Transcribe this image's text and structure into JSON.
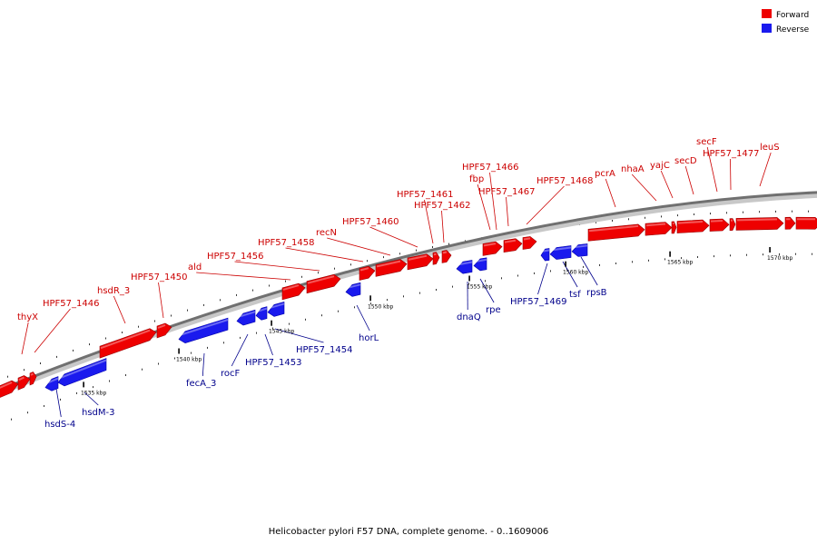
{
  "legend": {
    "forward_label": "Forward",
    "forward_color": "#ee0000",
    "reverse_label": "Reverse",
    "reverse_color": "#1a1aee"
  },
  "caption": "Helicobacter pylori F57 DNA, complete genome. - 0..1609006",
  "scale_labels": [
    "1535 kbp",
    "1540 kbp",
    "1545 kbp",
    "1550 kbp",
    "1555 kbp",
    "1560 kbp",
    "1565 kbp",
    "1570 kbp"
  ],
  "forward_genes": [
    "thyX",
    "HPF57_1446",
    "hsdR_3",
    "HPF57_1450",
    "ald",
    "HPF57_1456",
    "HPF57_1458",
    "recN",
    "HPF57_1460",
    "HPF57_1461",
    "HPF57_1462",
    "HPF57_1466",
    "fbp",
    "HPF57_1467",
    "HPF57_1468",
    "pcrA",
    "nhaA",
    "yajC",
    "secD",
    "secF",
    "HPF57_1477",
    "leuS"
  ],
  "reverse_genes": [
    "hsdS-4",
    "hsdM-3",
    "fecA_3",
    "rocF",
    "HPF57_1453",
    "HPF57_1454",
    "horL",
    "dnaQ",
    "rpe",
    "HPF57_1469",
    "tsf",
    "rpsB"
  ]
}
